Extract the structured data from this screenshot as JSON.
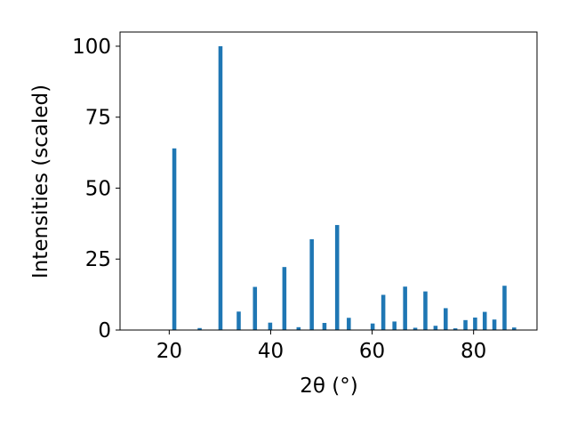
{
  "chart_data": {
    "type": "bar",
    "xlabel": "2θ (°)",
    "ylabel": "Intensities (scaled)",
    "xlim": [
      10.3,
      92.5
    ],
    "ylim": [
      0,
      105
    ],
    "x_ticks": [
      {
        "value": 20,
        "label": "20"
      },
      {
        "value": 40,
        "label": "40"
      },
      {
        "value": 60,
        "label": "60"
      },
      {
        "value": 80,
        "label": "80"
      }
    ],
    "y_ticks": [
      {
        "value": 0,
        "label": "0"
      },
      {
        "value": 25,
        "label": "25"
      },
      {
        "value": 50,
        "label": "50"
      },
      {
        "value": 75,
        "label": "75"
      },
      {
        "value": 100,
        "label": "100"
      }
    ],
    "bar_width": 0.8,
    "bar_color": "#1f77b4",
    "grid": false,
    "points": [
      {
        "x": 21.0,
        "y": 64
      },
      {
        "x": 26.0,
        "y": 0.7
      },
      {
        "x": 30.1,
        "y": 100
      },
      {
        "x": 33.7,
        "y": 6.5
      },
      {
        "x": 36.9,
        "y": 15.2
      },
      {
        "x": 39.9,
        "y": 2.6
      },
      {
        "x": 42.7,
        "y": 22.2
      },
      {
        "x": 45.5,
        "y": 1.0
      },
      {
        "x": 48.1,
        "y": 32
      },
      {
        "x": 50.6,
        "y": 2.5
      },
      {
        "x": 53.1,
        "y": 37
      },
      {
        "x": 55.4,
        "y": 4.3
      },
      {
        "x": 60.1,
        "y": 2.3
      },
      {
        "x": 62.2,
        "y": 12.4
      },
      {
        "x": 64.4,
        "y": 3.0
      },
      {
        "x": 66.5,
        "y": 15.3
      },
      {
        "x": 68.5,
        "y": 0.8
      },
      {
        "x": 70.5,
        "y": 13.6
      },
      {
        "x": 72.5,
        "y": 1.5
      },
      {
        "x": 74.5,
        "y": 7.7
      },
      {
        "x": 76.4,
        "y": 0.6
      },
      {
        "x": 78.4,
        "y": 3.5
      },
      {
        "x": 80.3,
        "y": 4.4
      },
      {
        "x": 82.2,
        "y": 6.4
      },
      {
        "x": 84.1,
        "y": 3.7
      },
      {
        "x": 86.1,
        "y": 15.6
      },
      {
        "x": 88.0,
        "y": 0.9
      }
    ]
  }
}
